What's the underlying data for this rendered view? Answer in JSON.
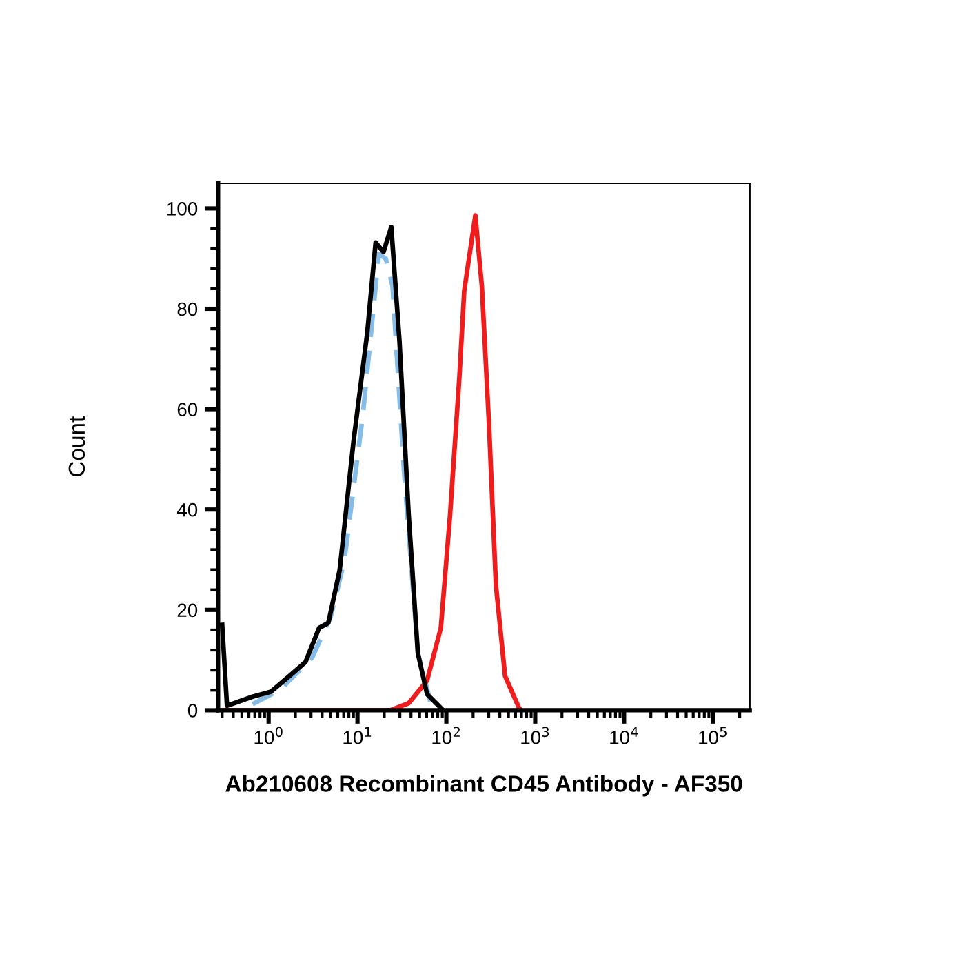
{
  "chart_data": {
    "type": "line",
    "xlabel": "Ab210608 Recombinant CD45 Antibody - AF350",
    "ylabel": "Count",
    "log": "x",
    "grid": false,
    "marker": "none",
    "xlim": [
      0.27,
      260000
    ],
    "ylim": [
      0,
      105
    ],
    "xticks": [
      {
        "value": 1,
        "label": "10$^{0}$"
      },
      {
        "value": 10,
        "label": "10$^{1}$"
      },
      {
        "value": 100,
        "label": "10$^{2}$"
      },
      {
        "value": 1000,
        "label": "10$^{3}$"
      },
      {
        "value": 10000,
        "label": "10$^{4}$"
      },
      {
        "value": 100000,
        "label": "10$^{5}$"
      },
      {
        "value": 0.3,
        "label": null
      },
      {
        "value": 0.4,
        "label": null
      },
      {
        "value": 0.5,
        "label": null
      },
      {
        "value": 0.6,
        "label": null
      },
      {
        "value": 0.7,
        "label": null
      },
      {
        "value": 0.8,
        "label": null
      },
      {
        "value": 0.9,
        "label": null
      },
      {
        "value": 2,
        "label": null
      },
      {
        "value": 3,
        "label": null
      },
      {
        "value": 4,
        "label": null
      },
      {
        "value": 5,
        "label": null
      },
      {
        "value": 6,
        "label": null
      },
      {
        "value": 7,
        "label": null
      },
      {
        "value": 8,
        "label": null
      },
      {
        "value": 9,
        "label": null
      },
      {
        "value": 20,
        "label": null
      },
      {
        "value": 30,
        "label": null
      },
      {
        "value": 40,
        "label": null
      },
      {
        "value": 50,
        "label": null
      },
      {
        "value": 60,
        "label": null
      },
      {
        "value": 70,
        "label": null
      },
      {
        "value": 80,
        "label": null
      },
      {
        "value": 90,
        "label": null
      },
      {
        "value": 200,
        "label": null
      },
      {
        "value": 300,
        "label": null
      },
      {
        "value": 400,
        "label": null
      },
      {
        "value": 500,
        "label": null
      },
      {
        "value": 600,
        "label": null
      },
      {
        "value": 700,
        "label": null
      },
      {
        "value": 800,
        "label": null
      },
      {
        "value": 900,
        "label": null
      },
      {
        "value": 2000,
        "label": null
      },
      {
        "value": 3000,
        "label": null
      },
      {
        "value": 4000,
        "label": null
      },
      {
        "value": 5000,
        "label": null
      },
      {
        "value": 6000,
        "label": null
      },
      {
        "value": 7000,
        "label": null
      },
      {
        "value": 8000,
        "label": null
      },
      {
        "value": 9000,
        "label": null
      },
      {
        "value": 20000,
        "label": null
      },
      {
        "value": 30000,
        "label": null
      },
      {
        "value": 40000,
        "label": null
      },
      {
        "value": 50000,
        "label": null
      },
      {
        "value": 60000,
        "label": null
      },
      {
        "value": 70000,
        "label": null
      },
      {
        "value": 80000,
        "label": null
      },
      {
        "value": 90000,
        "label": null
      },
      {
        "value": 200000,
        "label": null
      }
    ],
    "yticks": [
      0,
      20,
      40,
      60,
      80,
      100,
      {
        "value": 4,
        "label": null
      },
      {
        "value": 8,
        "label": null
      },
      {
        "value": 12,
        "label": null
      },
      {
        "value": 16,
        "label": null
      },
      {
        "value": 24,
        "label": null
      },
      {
        "value": 28,
        "label": null
      },
      {
        "value": 32,
        "label": null
      },
      {
        "value": 36,
        "label": null
      },
      {
        "value": 44,
        "label": null
      },
      {
        "value": 48,
        "label": null
      },
      {
        "value": 52,
        "label": null
      },
      {
        "value": 56,
        "label": null
      },
      {
        "value": 64,
        "label": null
      },
      {
        "value": 68,
        "label": null
      },
      {
        "value": 72,
        "label": null
      },
      {
        "value": 76,
        "label": null
      },
      {
        "value": 84,
        "label": null
      },
      {
        "value": 88,
        "label": null
      },
      {
        "value": 92,
        "label": null
      },
      {
        "value": 96,
        "label": null
      }
    ],
    "series": [
      {
        "color": "#85bde8",
        "line_style": "dashed",
        "x": [
          0.66,
          1.35,
          3.1,
          5.0,
          7.1,
          11.5,
          17.4,
          20.8,
          24.8,
          33.3,
          47.8,
          68
        ],
        "values": [
          1.2,
          4.1,
          10.5,
          18.7,
          29.7,
          58.9,
          90.9,
          90,
          84.5,
          48,
          11.4,
          0.9
        ]
      },
      {
        "color": "#ee1c1c",
        "line_style": "solid",
        "x": [
          0.27,
          23.5,
          37.7,
          60.7,
          86.7,
          110,
          140,
          159,
          212,
          251,
          302,
          361,
          458,
          656,
          700
        ],
        "values": [
          0,
          0,
          1.4,
          5.9,
          16.4,
          38.8,
          66.2,
          83.6,
          98.6,
          84.5,
          57,
          25,
          6.8,
          0.5,
          0
        ]
      },
      {
        "color": "#000000",
        "line_style": "solid",
        "x": [
          0.3,
          0.34,
          0.66,
          1.06,
          1.71,
          2.6,
          3.7,
          4.7,
          6.3,
          9.0,
          12.9,
          16,
          19.6,
          24,
          29.7,
          37.7,
          47.8,
          60.7,
          92
        ],
        "values": [
          17,
          0.9,
          2.7,
          3.7,
          6.8,
          9.6,
          16.4,
          17.4,
          27.9,
          53.4,
          75.3,
          93.2,
          91.3,
          96.3,
          73.5,
          38.8,
          11.4,
          3.2,
          0
        ]
      }
    ]
  }
}
